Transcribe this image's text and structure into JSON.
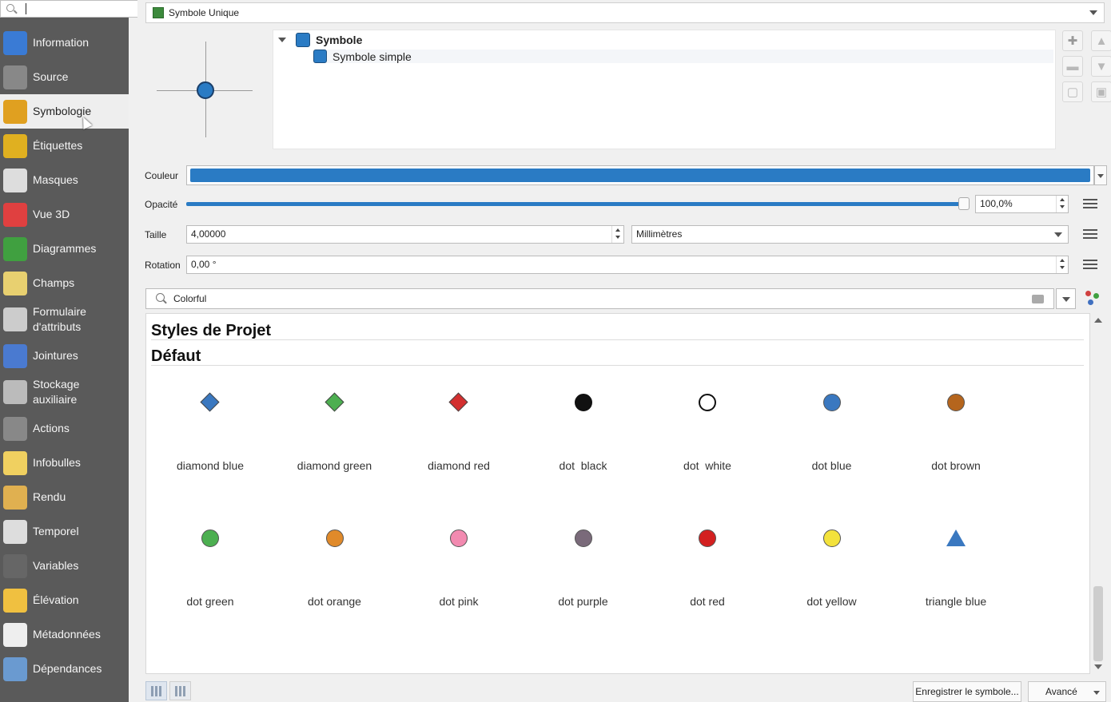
{
  "sidebar": {
    "search_value": "",
    "items": [
      {
        "label": "Information",
        "icon": "info-icon",
        "color": "#3a7bd5"
      },
      {
        "label": "Source",
        "icon": "wrench-icon",
        "color": "#888888"
      },
      {
        "label": "Symbologie",
        "icon": "paintbrush-icon",
        "color": "#e0a020"
      },
      {
        "label": "Étiquettes",
        "icon": "abc-label-icon",
        "color": "#e0b020"
      },
      {
        "label": "Masques",
        "icon": "abc-mask-icon",
        "color": "#dddddd"
      },
      {
        "label": "Vue 3D",
        "icon": "cube-3d-icon",
        "color": "#e04040"
      },
      {
        "label": "Diagrammes",
        "icon": "chart-icon",
        "color": "#40a040"
      },
      {
        "label": "Champs",
        "icon": "fields-icon",
        "color": "#e8d070"
      },
      {
        "label": "Formulaire d'attributs",
        "icon": "form-icon",
        "color": "#cccccc"
      },
      {
        "label": "Jointures",
        "icon": "join-icon",
        "color": "#4a7ad0"
      },
      {
        "label": "Stockage auxiliaire",
        "icon": "storage-icon",
        "color": "#bbbbbb"
      },
      {
        "label": "Actions",
        "icon": "gear-icon",
        "color": "#888888"
      },
      {
        "label": "Infobulles",
        "icon": "speech-bubble-icon",
        "color": "#f0d060"
      },
      {
        "label": "Rendu",
        "icon": "brush-icon",
        "color": "#e0b050"
      },
      {
        "label": "Temporel",
        "icon": "clock-icon",
        "color": "#dddddd"
      },
      {
        "label": "Variables",
        "icon": "variables-icon",
        "color": "#666666"
      },
      {
        "label": "Élévation",
        "icon": "elevation-icon",
        "color": "#f0c040"
      },
      {
        "label": "Métadonnées",
        "icon": "metadata-icon",
        "color": "#eeeeee"
      },
      {
        "label": "Dépendances",
        "icon": "dependencies-icon",
        "color": "#6a9ad0"
      }
    ]
  },
  "renderer": {
    "label": "Symbole Unique"
  },
  "symbol_tree": {
    "root": "Symbole",
    "child": "Symbole simple"
  },
  "accent_color": "#2a7bc4",
  "props": {
    "color_label": "Couleur",
    "opacity_label": "Opacité",
    "opacity_value": "100,0%",
    "opacity_fraction": 1.0,
    "size_label": "Taille",
    "size_value": "4,00000",
    "unit_value": "Millimètres",
    "rotation_label": "Rotation",
    "rotation_value": "0,00 °"
  },
  "style_search": {
    "value": "Colorful"
  },
  "gallery": {
    "group_project": "Styles de Projet",
    "group_default": "Défaut",
    "symbols": [
      {
        "name": "diamond blue",
        "shape": "diamond",
        "color": "#3a78c0"
      },
      {
        "name": "diamond green",
        "shape": "diamond",
        "color": "#4caf50"
      },
      {
        "name": "diamond red",
        "shape": "diamond",
        "color": "#d32f2f"
      },
      {
        "name": "dot  black",
        "shape": "dot",
        "color": "#111111"
      },
      {
        "name": "dot  white",
        "shape": "dot",
        "color": "#ffffff"
      },
      {
        "name": "dot blue",
        "shape": "dot",
        "color": "#3a78c0"
      },
      {
        "name": "dot brown",
        "shape": "dot",
        "color": "#b5651d"
      },
      {
        "name": "dot green",
        "shape": "dot",
        "color": "#4caf50"
      },
      {
        "name": "dot orange",
        "shape": "dot",
        "color": "#e08a2a"
      },
      {
        "name": "dot pink",
        "shape": "dot",
        "color": "#f28ab0"
      },
      {
        "name": "dot purple",
        "shape": "dot",
        "color": "#7a6a7a"
      },
      {
        "name": "dot red",
        "shape": "dot",
        "color": "#d32020"
      },
      {
        "name": "dot yellow",
        "shape": "dot",
        "color": "#f3e23c"
      },
      {
        "name": "triangle blue",
        "shape": "triangle",
        "color": "#3a78c0"
      }
    ]
  },
  "footer": {
    "save_label": "Enregistrer le symbole...",
    "advanced_label": "Avancé"
  }
}
